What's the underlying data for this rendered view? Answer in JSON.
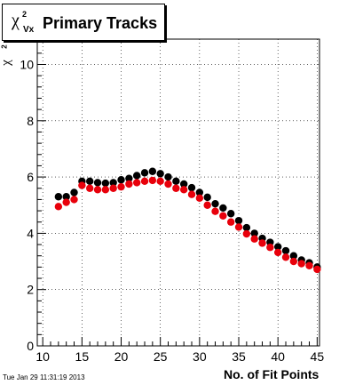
{
  "title": {
    "symbol": "χ",
    "superscript": "2",
    "subscript": "Vx",
    "text": "Primary Tracks"
  },
  "datestamp": "Tue Jan 29 11:31:19 2013",
  "colors": {
    "series_black": "#000000",
    "series_red": "#e8000b",
    "grid": "#000000"
  },
  "chart_data": {
    "type": "scatter",
    "title": "χ²Vx Primary Tracks",
    "xlabel": "No. of Fit Points",
    "ylabel": "χ²Vx",
    "xlim": [
      9.3,
      45.3
    ],
    "ylim": [
      0,
      10.9
    ],
    "grid": true,
    "x_ticks": [
      10,
      15,
      20,
      25,
      30,
      35,
      40,
      45
    ],
    "y_ticks": [
      0,
      2,
      4,
      6,
      8,
      10
    ],
    "x": [
      12,
      13,
      14,
      15,
      16,
      17,
      18,
      19,
      20,
      21,
      22,
      23,
      24,
      25,
      26,
      27,
      28,
      29,
      30,
      31,
      32,
      33,
      34,
      35,
      36,
      37,
      38,
      39,
      40,
      41,
      42,
      43,
      44,
      45
    ],
    "series": [
      {
        "color": "#000000",
        "values": [
          5.3,
          5.3,
          5.45,
          5.85,
          5.85,
          5.8,
          5.78,
          5.8,
          5.9,
          5.95,
          6.05,
          6.15,
          6.2,
          6.12,
          6.0,
          5.85,
          5.75,
          5.62,
          5.45,
          5.28,
          5.05,
          4.9,
          4.7,
          4.45,
          4.2,
          4.0,
          3.82,
          3.68,
          3.52,
          3.38,
          3.2,
          3.05,
          2.95,
          2.8
        ]
      },
      {
        "color": "#e8000b",
        "values": [
          4.95,
          5.1,
          5.2,
          5.7,
          5.6,
          5.55,
          5.55,
          5.6,
          5.65,
          5.75,
          5.8,
          5.85,
          5.88,
          5.85,
          5.75,
          5.6,
          5.55,
          5.38,
          5.25,
          5.0,
          4.78,
          4.62,
          4.4,
          4.22,
          3.98,
          3.8,
          3.65,
          3.5,
          3.32,
          3.15,
          3.0,
          2.92,
          2.85,
          2.72
        ]
      }
    ]
  }
}
